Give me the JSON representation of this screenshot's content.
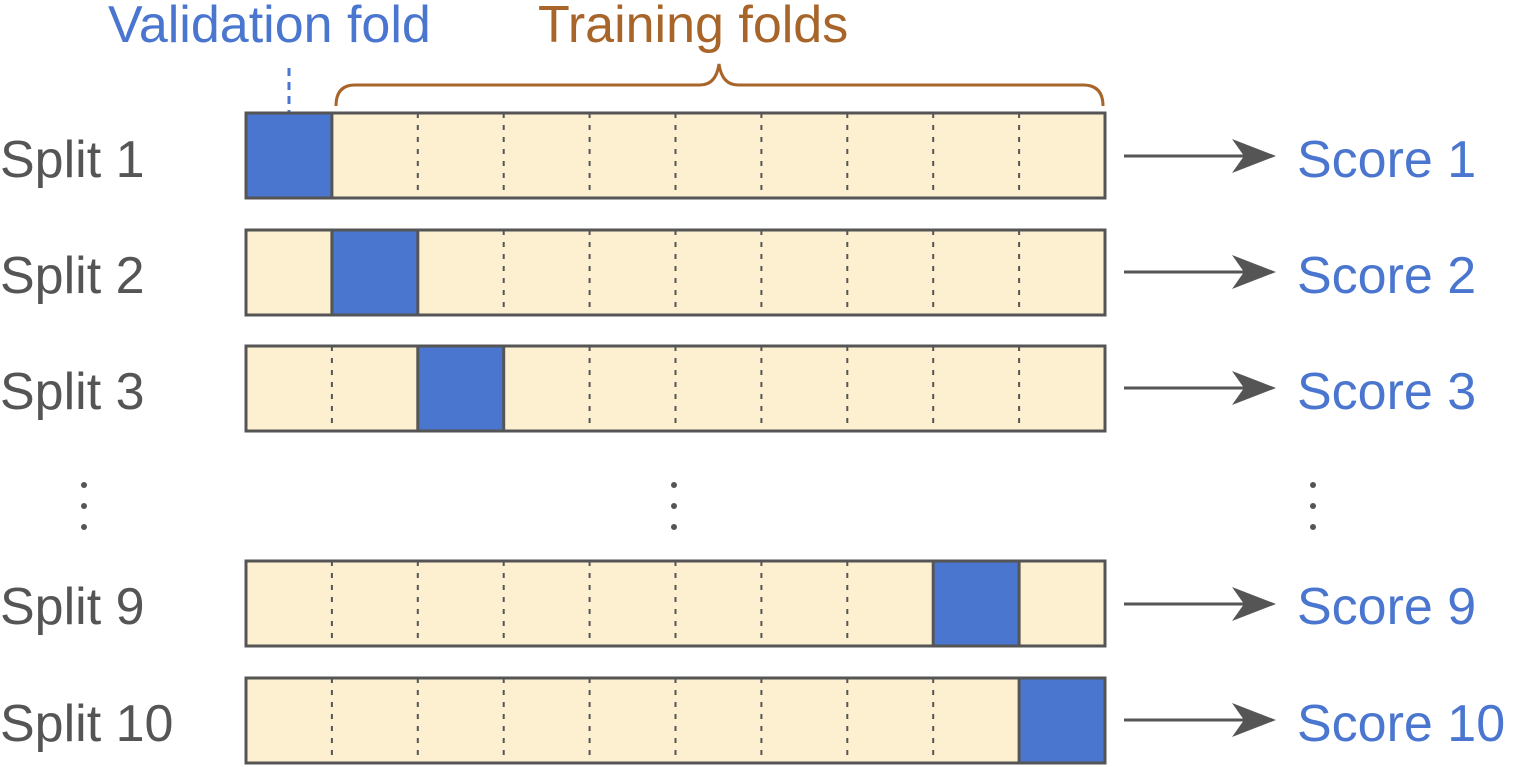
{
  "header": {
    "validation_label": "Validation fold",
    "training_label": "Training folds"
  },
  "folds_per_split": 10,
  "splits": [
    {
      "label": "Split 1",
      "score": "Score 1",
      "validation_fold": 1
    },
    {
      "label": "Split 2",
      "score": "Score 2",
      "validation_fold": 2
    },
    {
      "label": "Split 3",
      "score": "Score 3",
      "validation_fold": 3
    },
    {
      "label": "Split 9",
      "score": "Score 9",
      "validation_fold": 9
    },
    {
      "label": "Split 10",
      "score": "Score 10",
      "validation_fold": 10
    }
  ],
  "colors": {
    "validation": "#4a76cf",
    "training": "#fcf0d0",
    "border": "#555555",
    "training_text": "#a8652a",
    "score_text": "#4a76cf",
    "label_text": "#555555"
  }
}
